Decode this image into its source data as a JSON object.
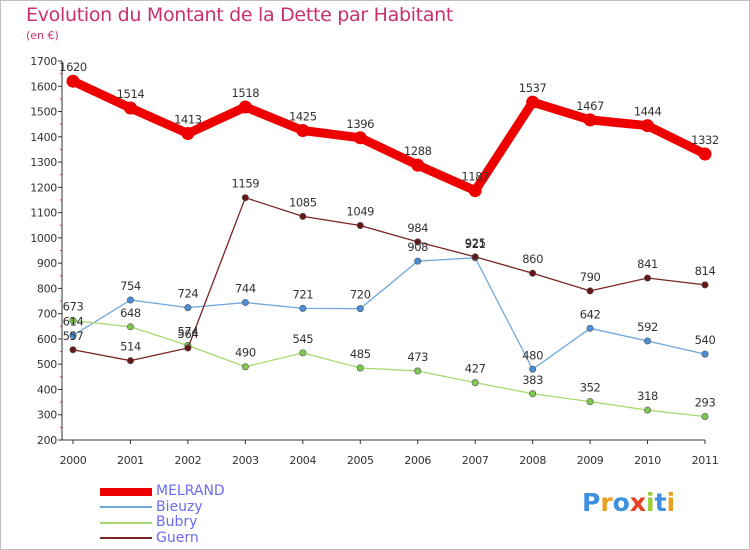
{
  "header": {
    "title": "Evolution du Montant de la Dette par Habitant",
    "unit": "(en €)"
  },
  "logo": {
    "text": "Proxiti",
    "letters": [
      {
        "ch": "P",
        "color": "#3d8fe0"
      },
      {
        "ch": "r",
        "color": "#e8a020"
      },
      {
        "ch": "o",
        "color": "#3d8fe0"
      },
      {
        "ch": "x",
        "color": "#e84020"
      },
      {
        "ch": "i",
        "color": "#9acd32"
      },
      {
        "ch": "t",
        "color": "#3d8fe0"
      },
      {
        "ch": "i",
        "color": "#e8a020"
      }
    ]
  },
  "chart_data": {
    "type": "line",
    "title": "Evolution du Montant de la Dette par Habitant",
    "subtitle": "(en €)",
    "x": [
      "2000",
      "2001",
      "2002",
      "2003",
      "2004",
      "2005",
      "2006",
      "2007",
      "2008",
      "2009",
      "2010",
      "2011"
    ],
    "ylim": [
      200,
      1700
    ],
    "yticks": [
      200,
      300,
      400,
      500,
      600,
      700,
      800,
      900,
      1000,
      1100,
      1200,
      1300,
      1400,
      1500,
      1600,
      1700
    ],
    "grid": false,
    "legend_position": "bottom-left",
    "series": [
      {
        "name": "MELRAND",
        "color": "#ee0000",
        "marker": "#ee0000",
        "width": "thick",
        "values": [
          1620,
          1514,
          1413,
          1518,
          1425,
          1396,
          1288,
          1187,
          1537,
          1467,
          1444,
          1332
        ]
      },
      {
        "name": "Bieuzy",
        "color": "#6fa8dc",
        "marker": "#4a90d9",
        "width": "thin",
        "values": [
          614,
          754,
          724,
          744,
          721,
          720,
          908,
          921,
          480,
          642,
          592,
          540
        ]
      },
      {
        "name": "Bubry",
        "color": "#a8d870",
        "marker": "#7ec850",
        "width": "thin",
        "values": [
          673,
          648,
          574,
          490,
          545,
          485,
          473,
          427,
          383,
          352,
          318,
          293
        ]
      },
      {
        "name": "Guern",
        "color": "#7a2424",
        "marker": "#661818",
        "width": "thin",
        "values": [
          557,
          514,
          564,
          1159,
          1085,
          1049,
          984,
          925,
          860,
          790,
          841,
          814
        ]
      }
    ]
  }
}
